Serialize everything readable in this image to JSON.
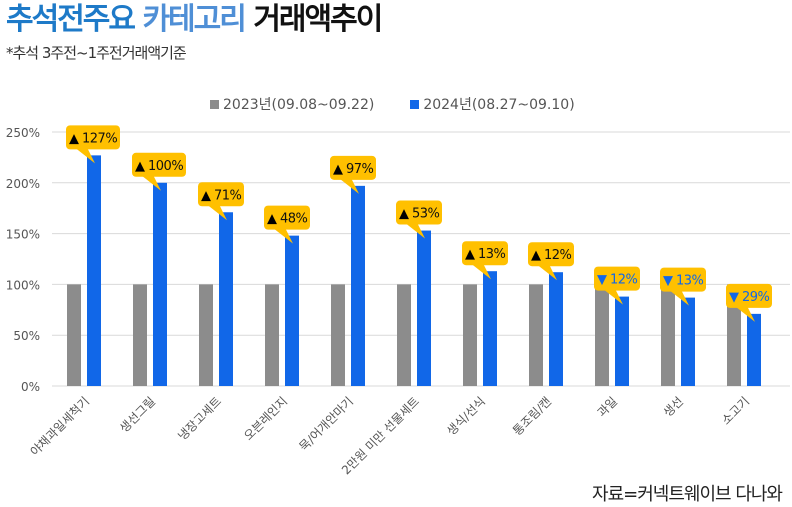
{
  "header": {
    "title_part1": "추석전주요 ",
    "title_part2": "카테고리 ",
    "title_part3": "거래액추이",
    "subtitle": "*추석 3주전~1주전거래액기준"
  },
  "legend": [
    {
      "label": "2023년(09.08~09.22)",
      "color": "#8c8c8c"
    },
    {
      "label": "2024년(08.27~09.10)",
      "color": "#1167e8"
    }
  ],
  "source": "자료=커넥트웨이브 다나와",
  "chart_data": {
    "type": "bar",
    "title": "추석전주요 카테고리 거래액추이",
    "subtitle": "*추석 3주전~1주전거래액기준",
    "categories": [
      "야채과일세척기",
      "생선그릴",
      "냉장고세트",
      "오븐레인지",
      "묵/어개안마기",
      "2만원 미만 선물세트",
      "생식/선식",
      "통조림/캔",
      "과일",
      "생선",
      "소고기"
    ],
    "series": [
      {
        "name": "2023년(09.08~09.22)",
        "color": "#8c8c8c",
        "values": [
          100,
          100,
          100,
          100,
          100,
          100,
          100,
          100,
          100,
          100,
          100
        ]
      },
      {
        "name": "2024년(08.27~09.10)",
        "color": "#1167e8",
        "values": [
          227,
          200,
          171,
          148,
          197,
          153,
          113,
          112,
          88,
          87,
          71
        ]
      }
    ],
    "annotations": [
      "▲127%",
      "▲100%",
      "▲71%",
      "▲48%",
      "▲97%",
      "▲53%",
      "▲13%",
      "▲12%",
      "▼12%",
      "▼13%",
      "▼29%"
    ],
    "yticks": [
      "0%",
      "50%",
      "100%",
      "150%",
      "200%",
      "250%"
    ],
    "ylim": [
      0,
      250
    ],
    "xlabel": "",
    "ylabel": "",
    "grid": true,
    "legend_position": "top"
  }
}
